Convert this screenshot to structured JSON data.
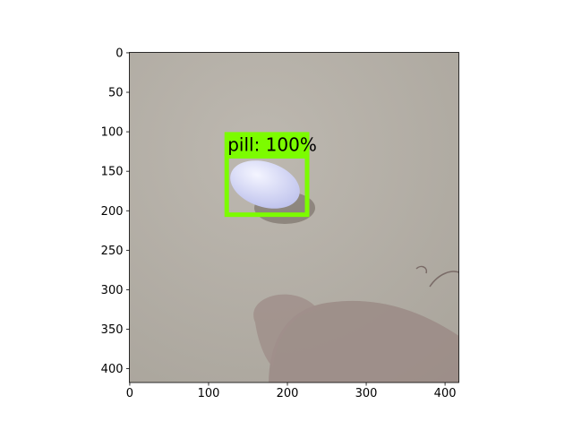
{
  "chart_data": {
    "type": "image",
    "xlim": [
      -0.5,
      417.5
    ],
    "ylim": [
      417.5,
      -0.5
    ],
    "xticks": [
      0,
      100,
      200,
      300,
      400
    ],
    "yticks": [
      0,
      50,
      100,
      150,
      200,
      250,
      300,
      350,
      400
    ],
    "boxes": [
      {
        "label": "pill: 100%",
        "color": "#7cfc00",
        "x0": 123,
        "y0": 131,
        "x1": 225,
        "y1": 205
      }
    ]
  }
}
